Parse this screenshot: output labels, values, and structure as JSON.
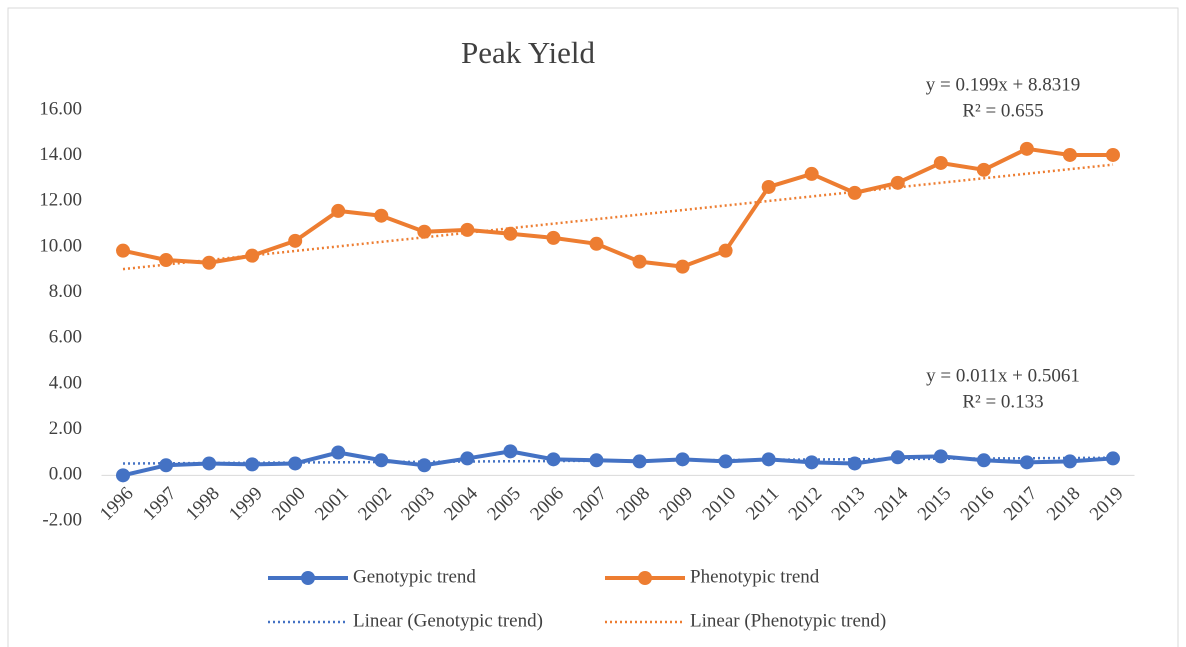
{
  "chart_data": {
    "type": "line",
    "title": "Peak Yield",
    "categories": [
      "1996",
      "1997",
      "1998",
      "1999",
      "2000",
      "2001",
      "2002",
      "2003",
      "2004",
      "2005",
      "2006",
      "2007",
      "2008",
      "2009",
      "2010",
      "2011",
      "2012",
      "2013",
      "2014",
      "2015",
      "2016",
      "2017",
      "2018",
      "2019"
    ],
    "series": [
      {
        "name": "Genotypic trend",
        "color": "#4472c4",
        "values": [
          0.0,
          0.44,
          0.52,
          0.48,
          0.52,
          1.0,
          0.66,
          0.44,
          0.74,
          1.05,
          0.7,
          0.66,
          0.61,
          0.7,
          0.61,
          0.7,
          0.57,
          0.52,
          0.79,
          0.83,
          0.66,
          0.57,
          0.61,
          0.74
        ],
        "trendline": {
          "name": "Linear (Genotypic trend)",
          "slope": 0.011,
          "intercept": 0.5061,
          "equation": "y = 0.011x + 0.5061",
          "r_squared": "R² = 0.133"
        }
      },
      {
        "name": "Phenotypic trend",
        "color": "#ed7d31",
        "values": [
          9.84,
          9.43,
          9.31,
          9.62,
          10.27,
          11.58,
          11.37,
          10.67,
          10.75,
          10.58,
          10.4,
          10.14,
          9.36,
          9.14,
          9.84,
          12.63,
          13.2,
          12.37,
          12.81,
          13.68,
          13.38,
          14.3,
          14.03,
          14.03
        ],
        "trendline": {
          "name": "Linear (Phenotypic trend)",
          "slope": 0.199,
          "intercept": 8.8319,
          "equation": "y = 0.199x + 8.8319",
          "r_squared": "R² = 0.655"
        }
      }
    ],
    "ylim": [
      -2,
      16
    ],
    "yticks": [
      {
        "value": -2,
        "label": "-2.00"
      },
      {
        "value": 0,
        "label": "0.00"
      },
      {
        "value": 2,
        "label": "2.00"
      },
      {
        "value": 4,
        "label": "4.00"
      },
      {
        "value": 6,
        "label": "6.00"
      },
      {
        "value": 8,
        "label": "8.00"
      },
      {
        "value": 10,
        "label": "10.00"
      },
      {
        "value": 12,
        "label": "12.00"
      },
      {
        "value": 14,
        "label": "14.00"
      },
      {
        "value": 16,
        "label": "16.00"
      }
    ],
    "grid": false,
    "legend": "bottom"
  }
}
